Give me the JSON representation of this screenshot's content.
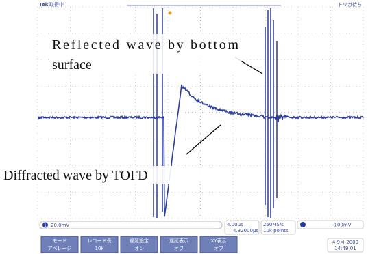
{
  "header": {
    "brand": "Tek",
    "status": "取得中",
    "trigger_status": "トリガ待ち"
  },
  "annotations": {
    "reflected": [
      "Reflected wave by bottom",
      "surface"
    ],
    "diffracted": "Diffracted wave by TOFD"
  },
  "status_bar": {
    "channel": "1",
    "scale": "20.0mV",
    "timebase": "4.00μs",
    "delay": "4.32000μs",
    "sample_rate": "250MS/s",
    "record_length": "10k points",
    "trigger_level": "-100mV"
  },
  "menu": [
    {
      "top": "モード",
      "bottom": "アベレージ"
    },
    {
      "top": "レコード長",
      "bottom": "10k"
    },
    {
      "top": "遅延設定",
      "bottom": "オン"
    },
    {
      "top": "遅延表示",
      "bottom": "オフ"
    },
    {
      "top": "XY表示",
      "bottom": "オフ"
    }
  ],
  "clock": {
    "date": "4 9月 2009",
    "time": "14:49:01"
  }
}
